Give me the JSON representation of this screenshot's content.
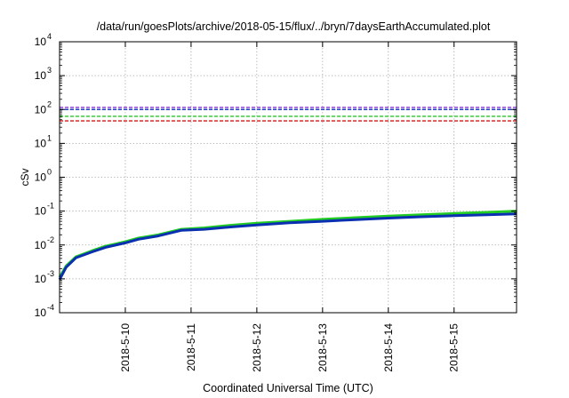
{
  "chart_data": {
    "type": "line",
    "title": "/data/run/goesPlots/archive/2018-05-15/flux/../bryn/7daysEarthAccumulated.plot",
    "xlabel": "Coordinated Universal Time (UTC)",
    "ylabel": "cSv",
    "yscale": "log",
    "ylim": [
      0.0001,
      10000
    ],
    "xlim": [
      0,
      6.95
    ],
    "grid": true,
    "y_ticks": [
      {
        "base": "10",
        "exp": "-4"
      },
      {
        "base": "10",
        "exp": "-3"
      },
      {
        "base": "10",
        "exp": "-2"
      },
      {
        "base": "10",
        "exp": "-1"
      },
      {
        "base": "10",
        "exp": "0"
      },
      {
        "base": "10",
        "exp": "1"
      },
      {
        "base": "10",
        "exp": "2"
      },
      {
        "base": "10",
        "exp": "3"
      },
      {
        "base": "10",
        "exp": "4"
      }
    ],
    "x_ticks": [
      {
        "x": 1,
        "label": "2018-5-10"
      },
      {
        "x": 2,
        "label": "2018-5-11"
      },
      {
        "x": 3,
        "label": "2018-5-12"
      },
      {
        "x": 4,
        "label": "2018-5-13"
      },
      {
        "x": 5,
        "label": "2018-5-14"
      },
      {
        "x": 6,
        "label": "2018-5-15"
      }
    ],
    "thresholds": [
      {
        "value": 115,
        "color": "#8a2be2"
      },
      {
        "value": 100,
        "color": "#1f3fd0"
      },
      {
        "value": 63,
        "color": "#22cc22"
      },
      {
        "value": 46,
        "color": "#e01010"
      }
    ],
    "series": [
      {
        "color": "#22cc22",
        "points": [
          [
            0,
            0.0011
          ],
          [
            0.1,
            0.0024
          ],
          [
            0.25,
            0.0045
          ],
          [
            0.5,
            0.0068
          ],
          [
            0.7,
            0.0092
          ],
          [
            1.0,
            0.0125
          ],
          [
            1.2,
            0.016
          ],
          [
            1.5,
            0.02
          ],
          [
            1.85,
            0.029
          ],
          [
            2.2,
            0.032
          ],
          [
            2.6,
            0.038
          ],
          [
            3.0,
            0.044
          ],
          [
            3.5,
            0.05
          ],
          [
            4.0,
            0.057
          ],
          [
            4.5,
            0.064
          ],
          [
            5.0,
            0.071
          ],
          [
            5.5,
            0.078
          ],
          [
            6.0,
            0.085
          ],
          [
            6.5,
            0.092
          ],
          [
            6.95,
            0.1
          ]
        ]
      },
      {
        "color": "#0a2fb0",
        "points": [
          [
            0,
            0.00095
          ],
          [
            0.1,
            0.0022
          ],
          [
            0.25,
            0.0042
          ],
          [
            0.5,
            0.0063
          ],
          [
            0.7,
            0.0085
          ],
          [
            1.0,
            0.0115
          ],
          [
            1.2,
            0.0148
          ],
          [
            1.5,
            0.0185
          ],
          [
            1.85,
            0.027
          ],
          [
            2.2,
            0.029
          ],
          [
            2.6,
            0.034
          ],
          [
            3.0,
            0.039
          ],
          [
            3.5,
            0.045
          ],
          [
            4.0,
            0.05
          ],
          [
            4.5,
            0.056
          ],
          [
            5.0,
            0.062
          ],
          [
            5.5,
            0.068
          ],
          [
            6.0,
            0.073
          ],
          [
            6.5,
            0.078
          ],
          [
            6.95,
            0.083
          ]
        ]
      }
    ]
  }
}
